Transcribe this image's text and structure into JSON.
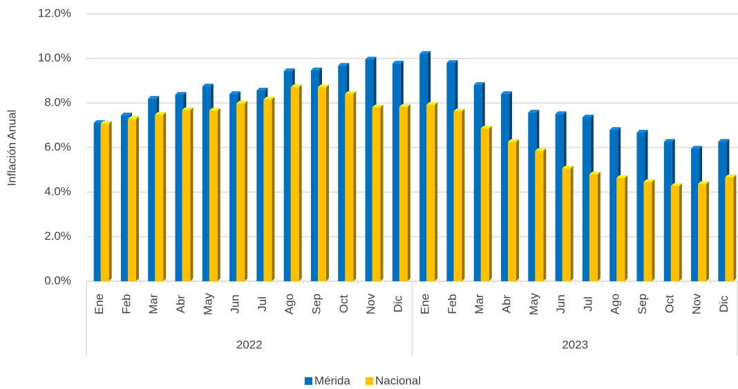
{
  "chart_data": {
    "type": "bar",
    "y_label": "Inflación Anual",
    "categories": [
      "Ene",
      "Feb",
      "Mar",
      "Abr",
      "May",
      "Jun",
      "Jul",
      "Ago",
      "Sep",
      "Oct",
      "Nov",
      "Dic",
      "Ene",
      "Feb",
      "Mar",
      "Abr",
      "May",
      "Jun",
      "Jul",
      "Ago",
      "Sep",
      "Oct",
      "Nov",
      "Dic"
    ],
    "category_groups": [
      "2022",
      "2023"
    ],
    "series": [
      {
        "name": "Mérida",
        "color": "#0070C0",
        "values": [
          7.1,
          7.44,
          8.19,
          8.37,
          8.74,
          8.4,
          8.56,
          9.43,
          9.46,
          9.67,
          9.95,
          9.77,
          10.2,
          9.8,
          8.81,
          8.4,
          7.57,
          7.5,
          7.35,
          6.79,
          6.67,
          6.26,
          5.95,
          6.26
        ]
      },
      {
        "name": "Nacional",
        "color": "#FFC000",
        "values": [
          7.07,
          7.28,
          7.47,
          7.68,
          7.65,
          7.97,
          8.15,
          8.7,
          8.7,
          8.4,
          7.8,
          7.82,
          7.91,
          7.62,
          6.85,
          6.25,
          5.84,
          5.06,
          4.79,
          4.63,
          4.45,
          4.27,
          4.36,
          4.66
        ]
      }
    ],
    "ylim": [
      0,
      12
    ],
    "yticks": [
      {
        "value": 0,
        "label": "0.0%"
      },
      {
        "value": 2,
        "label": "2.0%"
      },
      {
        "value": 4,
        "label": "4.0%"
      },
      {
        "value": 6,
        "label": "6.0%"
      },
      {
        "value": 8,
        "label": "8.0%"
      },
      {
        "value": 10,
        "label": "10.0%"
      },
      {
        "value": 12,
        "label": "12.0%"
      }
    ],
    "grid": true,
    "legend": "bottom"
  }
}
